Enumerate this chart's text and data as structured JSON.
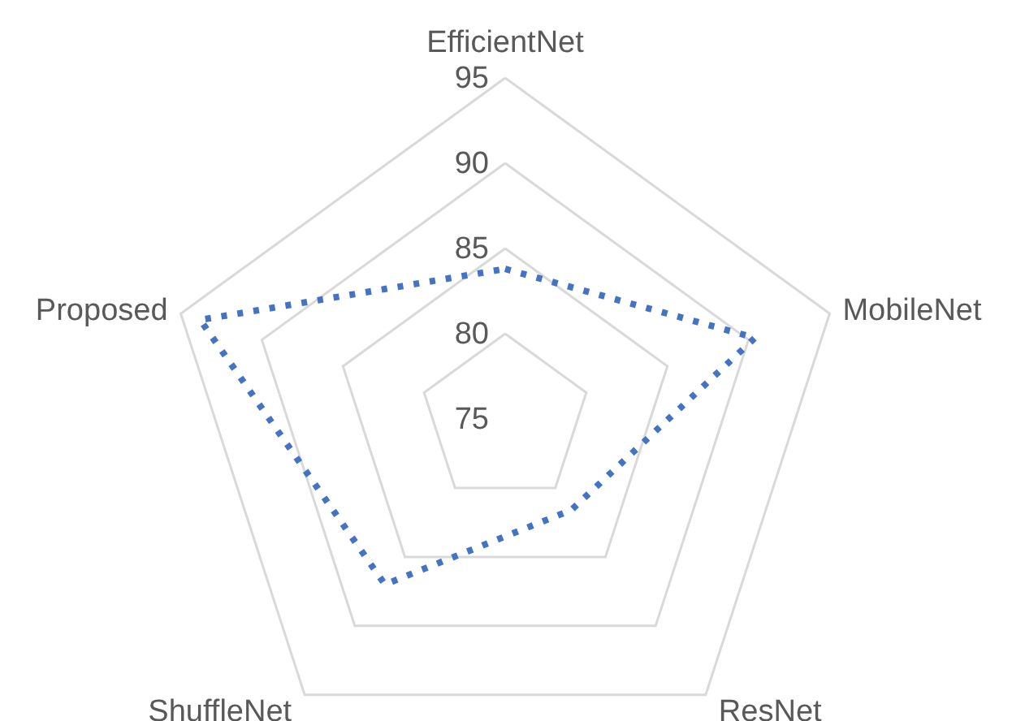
{
  "chart_data": {
    "type": "radar",
    "categories": [
      "EfficientNet",
      "MobileNet",
      "ResNet",
      "ShuffleNet",
      "Proposed"
    ],
    "series": [
      {
        "color": "#4472c4",
        "values": [
          83.8,
          90.4,
          81.6,
          87.0,
          93.8
        ]
      }
    ],
    "ylim": [
      75,
      95
    ],
    "yticks": [
      75,
      80,
      85,
      90,
      95
    ],
    "grid": true,
    "line_style": "dotted"
  }
}
